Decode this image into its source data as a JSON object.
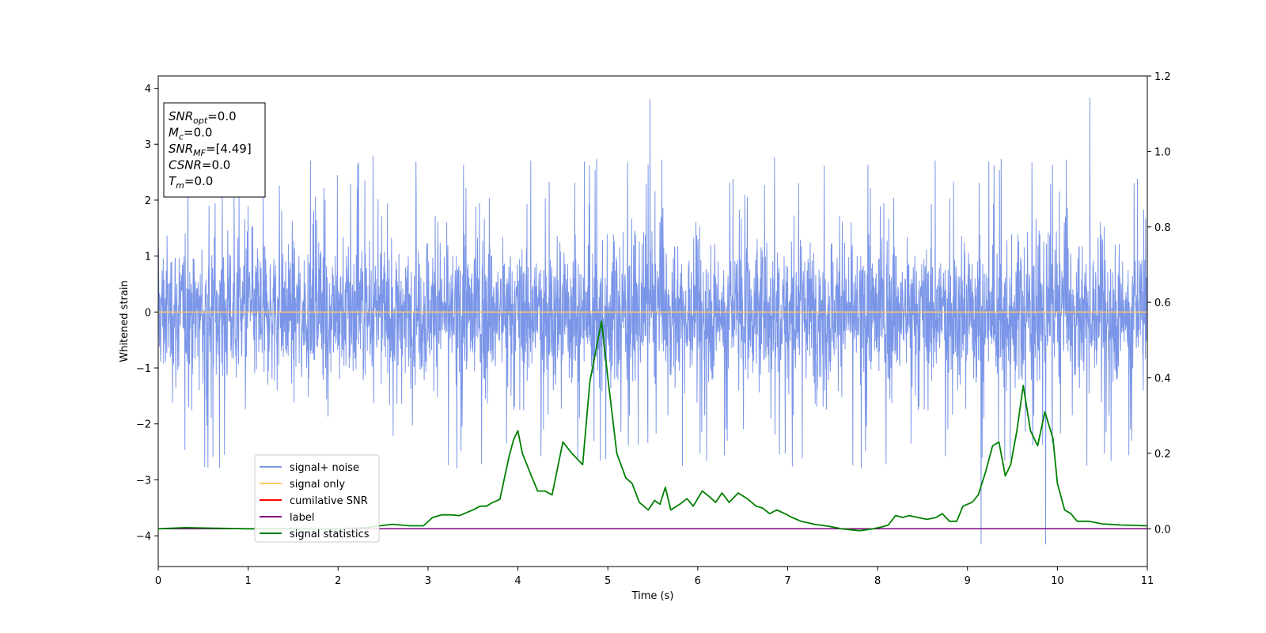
{
  "chart_data": {
    "type": "line",
    "xlabel": "Time (s)",
    "ylabel": "Whitened strain",
    "xlim": [
      0,
      11
    ],
    "ylim": [
      -4.55,
      4.22
    ],
    "y2lim": [
      -0.1,
      1.2
    ],
    "x_ticks": [
      "0",
      "1",
      "2",
      "3",
      "4",
      "5",
      "6",
      "7",
      "8",
      "9",
      "10",
      "11"
    ],
    "y_ticks": [
      {
        "value": 4,
        "label": "4"
      },
      {
        "value": 3,
        "label": "3"
      },
      {
        "value": 2,
        "label": "2"
      },
      {
        "value": 1,
        "label": "1"
      },
      {
        "value": 0,
        "label": "0"
      },
      {
        "value": -1,
        "label": "−1"
      },
      {
        "value": -2,
        "label": "−2"
      },
      {
        "value": -3,
        "label": "−3"
      },
      {
        "value": -4,
        "label": "−4"
      }
    ],
    "y2_ticks": [
      {
        "value": 1.2,
        "label": "1.2"
      },
      {
        "value": 1.0,
        "label": "1.0"
      },
      {
        "value": 0.8,
        "label": "0.8"
      },
      {
        "value": 0.6,
        "label": "0.6"
      },
      {
        "value": 0.4,
        "label": "0.4"
      },
      {
        "value": 0.2,
        "label": "0.2"
      },
      {
        "value": 0.0,
        "label": "0.0"
      }
    ],
    "grid": false,
    "legend_position": "lower-left",
    "info_box": {
      "lines": [
        {
          "main": "SNR",
          "sub": "opt",
          "value": "=0.0"
        },
        {
          "main": "M",
          "sub": "c",
          "value": "=0.0"
        },
        {
          "main": "SNR",
          "sub": "MF",
          "value": "=[4.49]"
        },
        {
          "main": "CSNR",
          "sub": "",
          "value": "=0.0"
        },
        {
          "main": "T",
          "sub": "m",
          "value": "=0.0"
        }
      ]
    },
    "series": [
      {
        "name": "signal+ noise",
        "color": "#7b96e8",
        "axis": "left",
        "kind": "noise",
        "envelope_typical": [
          -1.6,
          1.6
        ],
        "envelope_peak": [
          -4.2,
          3.85
        ],
        "notable_peaks": [
          {
            "x": 5.47,
            "y": 3.8
          },
          {
            "x": 10.36,
            "y": 3.83
          },
          {
            "x": 9.15,
            "y": -4.15
          },
          {
            "x": 9.87,
            "y": -4.15
          }
        ]
      },
      {
        "name": "signal only",
        "color": "#ffc966",
        "axis": "left",
        "x": [
          0,
          11
        ],
        "y": [
          0,
          0
        ]
      },
      {
        "name": "cumilative SNR",
        "color": "#ff0000",
        "axis": "right",
        "x": [],
        "y": []
      },
      {
        "name": "label",
        "color": "#800080",
        "axis": "right",
        "x": [
          0,
          11
        ],
        "y": [
          0.0,
          0.0
        ]
      },
      {
        "name": "signal statistics",
        "color": "#008000",
        "axis": "right",
        "x": [
          0,
          0.3,
          1.0,
          2.0,
          2.3,
          2.6,
          2.8,
          2.95,
          3.05,
          3.15,
          3.25,
          3.35,
          3.45,
          3.5,
          3.58,
          3.65,
          3.72,
          3.8,
          3.9,
          3.95,
          4.0,
          4.05,
          4.15,
          4.22,
          4.3,
          4.38,
          4.5,
          4.6,
          4.72,
          4.8,
          4.93,
          5.0,
          5.1,
          5.2,
          5.27,
          5.35,
          5.45,
          5.52,
          5.58,
          5.64,
          5.7,
          5.8,
          5.88,
          5.95,
          6.05,
          6.13,
          6.2,
          6.27,
          6.35,
          6.45,
          6.55,
          6.65,
          6.72,
          6.8,
          6.88,
          6.97,
          7.05,
          7.15,
          7.3,
          7.45,
          7.6,
          7.8,
          7.95,
          8.05,
          8.12,
          8.2,
          8.28,
          8.35,
          8.45,
          8.55,
          8.65,
          8.72,
          8.8,
          8.88,
          8.95,
          9.05,
          9.12,
          9.2,
          9.28,
          9.35,
          9.42,
          9.48,
          9.55,
          9.62,
          9.7,
          9.78,
          9.86,
          9.95,
          10.0,
          10.08,
          10.15,
          10.22,
          10.35,
          10.5,
          10.7,
          11.0
        ],
        "y": [
          0.0,
          0.003,
          0.0,
          0.0,
          0.003,
          0.012,
          0.008,
          0.008,
          0.03,
          0.037,
          0.037,
          0.035,
          0.045,
          0.05,
          0.06,
          0.06,
          0.07,
          0.078,
          0.19,
          0.235,
          0.26,
          0.2,
          0.14,
          0.1,
          0.1,
          0.09,
          0.23,
          0.2,
          0.17,
          0.39,
          0.55,
          0.4,
          0.2,
          0.135,
          0.12,
          0.07,
          0.05,
          0.075,
          0.065,
          0.11,
          0.05,
          0.065,
          0.08,
          0.06,
          0.1,
          0.085,
          0.07,
          0.095,
          0.07,
          0.095,
          0.08,
          0.06,
          0.055,
          0.04,
          0.05,
          0.04,
          0.03,
          0.02,
          0.012,
          0.007,
          0.0,
          -0.005,
          0.0,
          0.005,
          0.01,
          0.035,
          0.03,
          0.035,
          0.03,
          0.025,
          0.03,
          0.04,
          0.02,
          0.02,
          0.06,
          0.07,
          0.09,
          0.15,
          0.22,
          0.23,
          0.14,
          0.17,
          0.26,
          0.38,
          0.26,
          0.22,
          0.31,
          0.24,
          0.12,
          0.05,
          0.04,
          0.02,
          0.02,
          0.013,
          0.01,
          0.008
        ]
      }
    ]
  }
}
